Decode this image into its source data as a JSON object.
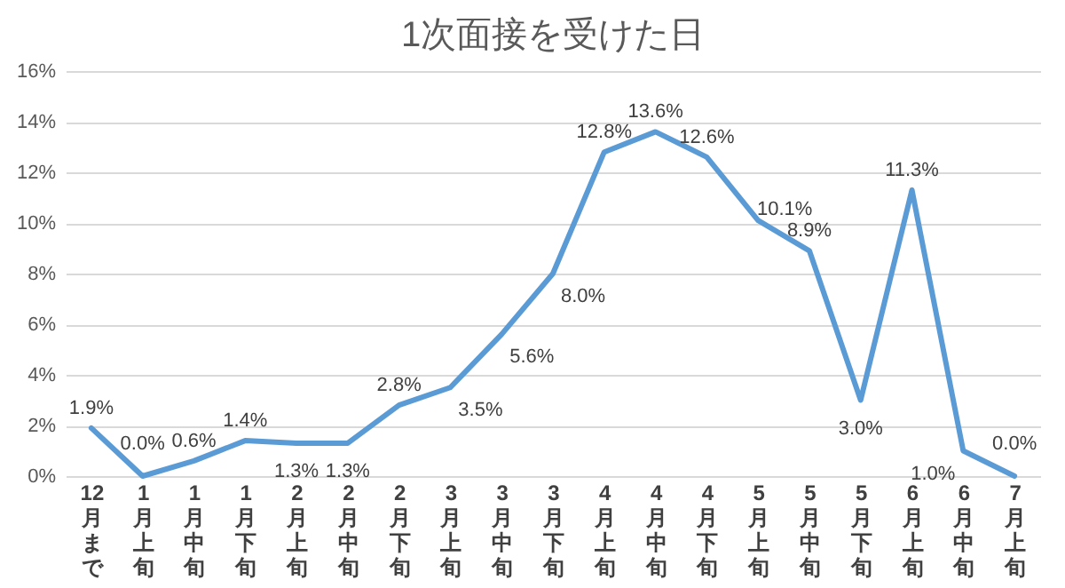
{
  "chart_data": {
    "type": "line",
    "title": "1次面接を受けた日",
    "categories": [
      "12月まで",
      "1月上旬",
      "1月中旬",
      "1月下旬",
      "2月上旬",
      "2月中旬",
      "2月下旬",
      "3月上旬",
      "3月中旬",
      "3月下旬",
      "4月上旬",
      "4月中旬",
      "4月下旬",
      "5月上旬",
      "5月中旬",
      "5月下旬",
      "6月上旬",
      "6月中旬",
      "7月上旬"
    ],
    "series": [
      {
        "color": "#5b9bd5",
        "values": [
          1.9,
          0.0,
          0.6,
          1.4,
          1.3,
          1.3,
          2.8,
          3.5,
          5.6,
          8.0,
          12.8,
          13.6,
          12.6,
          10.1,
          8.9,
          3.0,
          11.3,
          1.0,
          0.0
        ],
        "value_labels": [
          "1.9%",
          "0.0%",
          "0.6%",
          "1.4%",
          "1.3%",
          "1.3%",
          "2.8%",
          "3.5%",
          "5.6%",
          "8.0%",
          "12.8%",
          "13.6%",
          "12.6%",
          "10.1%",
          "8.9%",
          "3.0%",
          "11.3%",
          "1.0%",
          "0.0%"
        ]
      }
    ],
    "ylim": [
      0,
      16
    ],
    "yticks": [
      {
        "value": 0,
        "label": "0%"
      },
      {
        "value": 2,
        "label": "2%"
      },
      {
        "value": 4,
        "label": "4%"
      },
      {
        "value": 6,
        "label": "6%"
      },
      {
        "value": 8,
        "label": "8%"
      },
      {
        "value": 10,
        "label": "10%"
      },
      {
        "value": 12,
        "label": "12%"
      },
      {
        "value": 14,
        "label": "14%"
      },
      {
        "value": 16,
        "label": "16%"
      }
    ],
    "grid": "y",
    "marker": "none",
    "line_style": "solid"
  }
}
